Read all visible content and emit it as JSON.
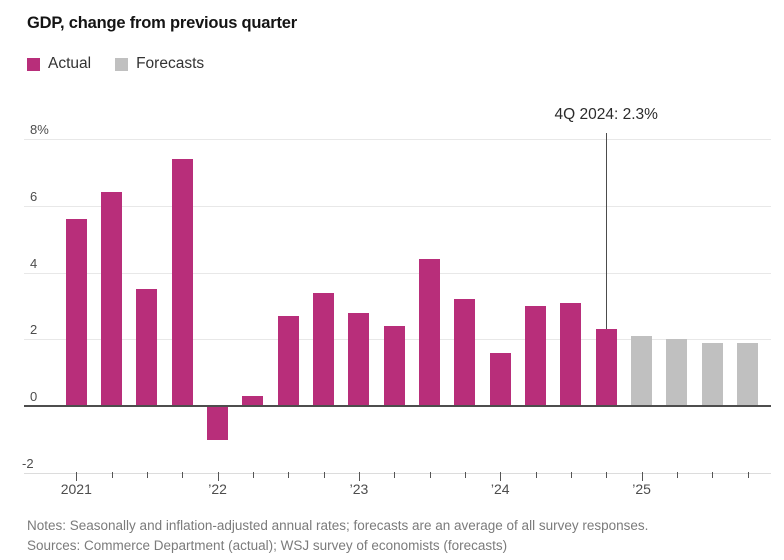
{
  "title": "GDP, change from previous quarter",
  "legend": [
    {
      "label": "Actual",
      "color": "#b82e7a"
    },
    {
      "label": "Forecasts",
      "color": "#c0c0c0"
    }
  ],
  "notes": "Notes: Seasonally and inflation-adjusted annual rates; forecasts are an average of all survey responses.",
  "sources": "Sources: Commerce Department (actual); WSJ survey of economists (forecasts)",
  "chart_data": {
    "type": "bar",
    "x": [
      "1Q 2021",
      "2Q 2021",
      "3Q 2021",
      "4Q 2021",
      "1Q 2022",
      "2Q 2022",
      "3Q 2022",
      "4Q 2022",
      "1Q 2023",
      "2Q 2023",
      "3Q 2023",
      "4Q 2023",
      "1Q 2024",
      "2Q 2024",
      "3Q 2024",
      "4Q 2024",
      "1Q 2025",
      "2Q 2025",
      "3Q 2025",
      "4Q 2025"
    ],
    "series": [
      {
        "name": "Actual",
        "color": "#b82e7a",
        "values": [
          5.6,
          6.4,
          3.5,
          7.4,
          -1.0,
          0.3,
          2.7,
          3.4,
          2.8,
          2.4,
          4.4,
          3.2,
          1.6,
          3.0,
          3.1,
          2.3,
          null,
          null,
          null,
          null
        ]
      },
      {
        "name": "Forecasts",
        "color": "#c0c0c0",
        "values": [
          null,
          null,
          null,
          null,
          null,
          null,
          null,
          null,
          null,
          null,
          null,
          null,
          null,
          null,
          null,
          null,
          2.1,
          2.0,
          1.9,
          1.9
        ]
      }
    ],
    "title": "GDP, change from previous quarter",
    "xlabel": "",
    "ylabel": "",
    "ylim": [
      -2,
      8
    ],
    "grid": true,
    "legend_position": "top-left",
    "y_ticks": [
      {
        "value": 8,
        "label": "8%"
      },
      {
        "value": 6,
        "label": "6"
      },
      {
        "value": 4,
        "label": "4"
      },
      {
        "value": 2,
        "label": "2"
      },
      {
        "value": 0,
        "label": "0"
      },
      {
        "value": -2,
        "label": "-2"
      }
    ],
    "x_year_labels": [
      {
        "index": 0,
        "label": "2021"
      },
      {
        "index": 4,
        "label": "’22"
      },
      {
        "index": 8,
        "label": "’23"
      },
      {
        "index": 12,
        "label": "’24"
      },
      {
        "index": 16,
        "label": "’25"
      }
    ],
    "annotation": {
      "text": "4Q 2024: 2.3%",
      "bar_index": 15,
      "value": 2.3
    }
  }
}
